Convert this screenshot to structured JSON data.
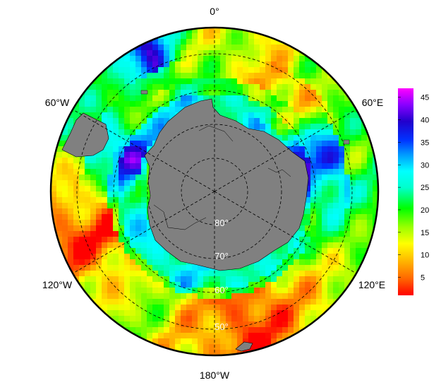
{
  "map": {
    "projection": "south-polar-stereographic",
    "longitude_labels": [
      {
        "text": "0°",
        "lon": 0
      },
      {
        "text": "60°E",
        "lon": 60
      },
      {
        "text": "120°E",
        "lon": 120
      },
      {
        "text": "180°W",
        "lon": 180
      },
      {
        "text": "120°W",
        "lon": -120
      },
      {
        "text": "60°W",
        "lon": -60
      }
    ],
    "latitude_labels": [
      {
        "text": "80°",
        "lat": -80
      },
      {
        "text": "70°",
        "lat": -70
      },
      {
        "text": "60°",
        "lat": -60
      },
      {
        "text": "50°",
        "lat": -50
      }
    ],
    "latitude_circles": [
      -80,
      -70,
      -60,
      -50
    ],
    "meridians": [
      0,
      60,
      120,
      180,
      -120,
      -60
    ],
    "land_color": "#808080",
    "outer_ring_color": "#000000"
  },
  "colorbar": {
    "min": 1,
    "max": 47,
    "ticks": [
      "5",
      "10",
      "15",
      "20",
      "25",
      "30",
      "35",
      "40",
      "45"
    ],
    "tick_values": [
      5,
      10,
      15,
      20,
      25,
      30,
      35,
      40,
      45
    ],
    "colors": [
      "#ff0000",
      "#ff6600",
      "#ffcc00",
      "#ffff00",
      "#99ff00",
      "#00ff00",
      "#00ffcc",
      "#00ffff",
      "#0099ff",
      "#0033ff",
      "#2200cc",
      "#8800ff",
      "#ff00ff"
    ]
  }
}
